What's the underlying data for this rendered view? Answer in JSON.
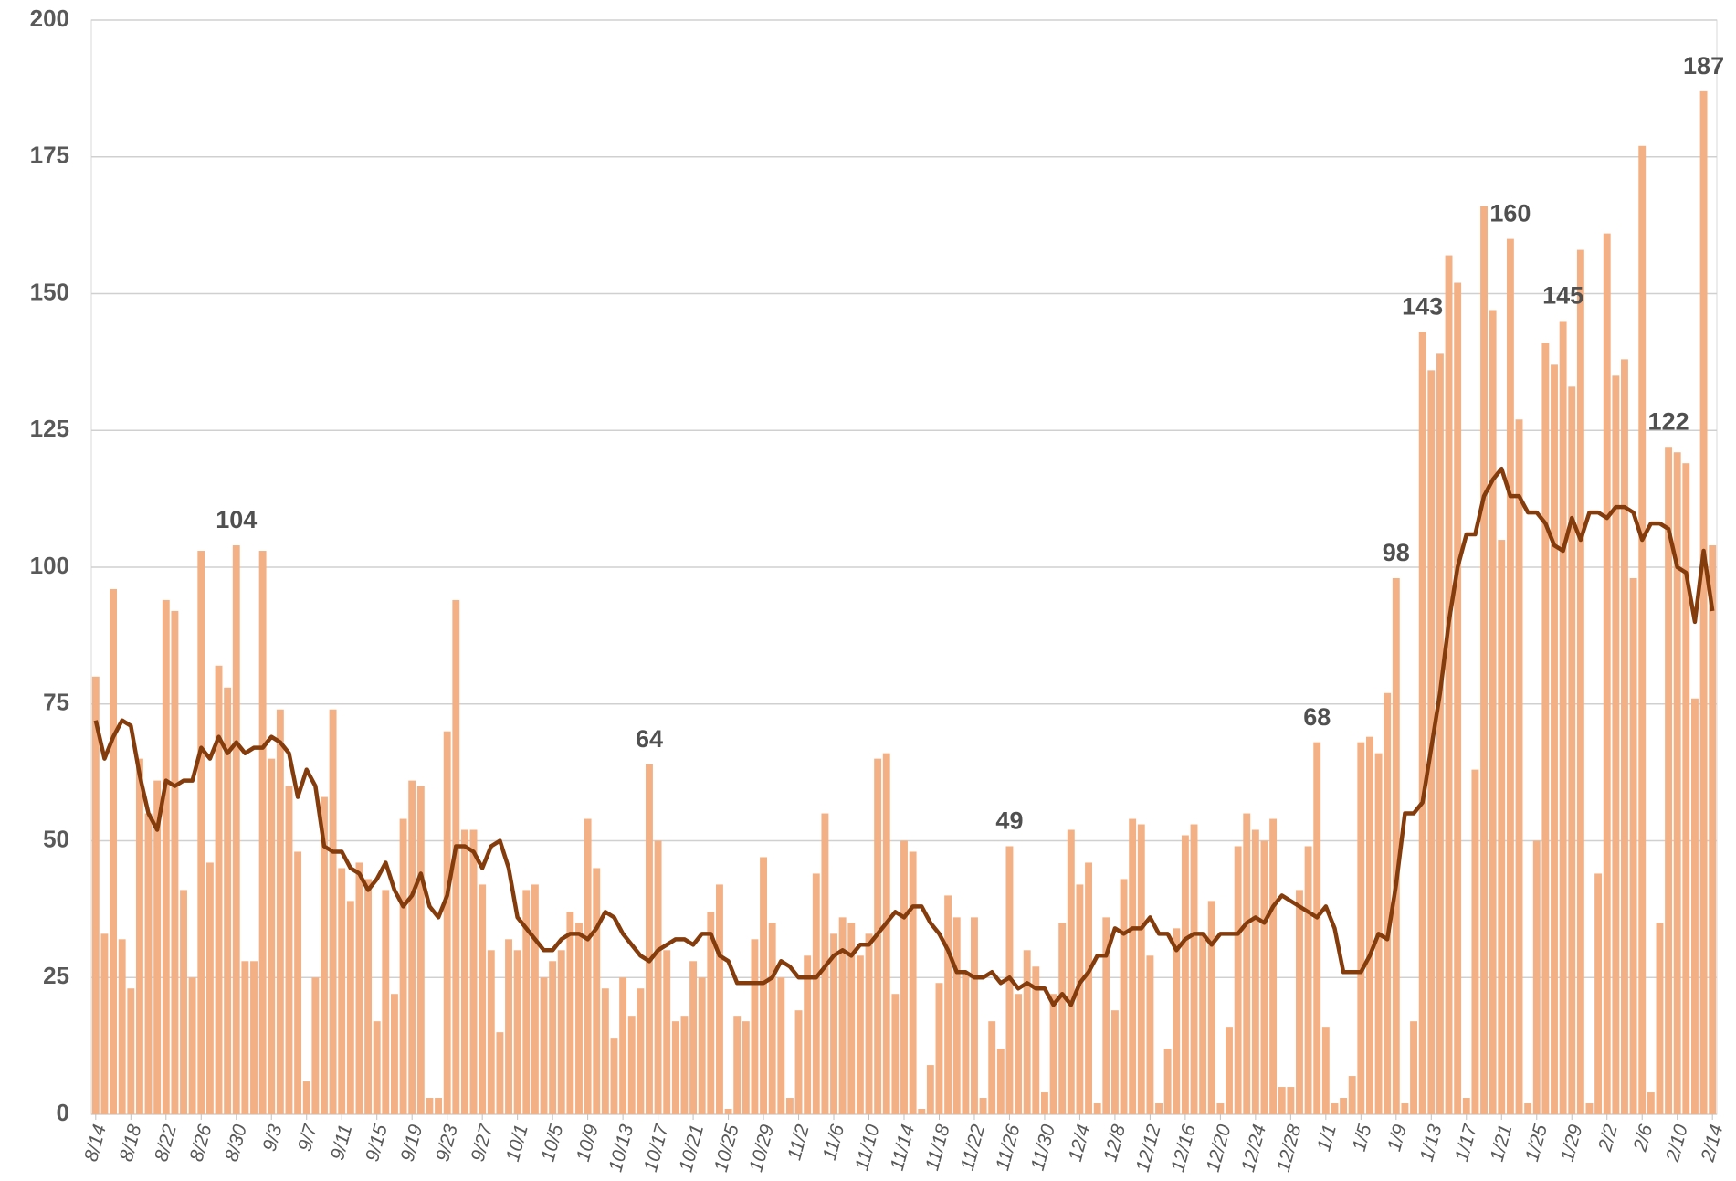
{
  "chart_data": {
    "type": "bar",
    "categories": [
      "8/14",
      null,
      null,
      null,
      "8/18",
      null,
      null,
      null,
      "8/22",
      null,
      null,
      null,
      "8/26",
      null,
      null,
      null,
      "8/30",
      null,
      null,
      null,
      "9/3",
      null,
      null,
      null,
      "9/7",
      null,
      null,
      null,
      "9/11",
      null,
      null,
      null,
      "9/15",
      null,
      null,
      null,
      "9/19",
      null,
      null,
      null,
      "9/23",
      null,
      null,
      null,
      "9/27",
      null,
      null,
      null,
      "10/1",
      null,
      null,
      null,
      "10/5",
      null,
      null,
      null,
      "10/9",
      null,
      null,
      null,
      "10/13",
      null,
      null,
      null,
      "10/17",
      null,
      null,
      null,
      "10/21",
      null,
      null,
      null,
      "10/25",
      null,
      null,
      null,
      "10/29",
      null,
      null,
      null,
      "11/2",
      null,
      null,
      null,
      "11/6",
      null,
      null,
      null,
      "11/10",
      null,
      null,
      null,
      "11/14",
      null,
      null,
      null,
      "11/18",
      null,
      null,
      null,
      "11/22",
      null,
      null,
      null,
      "11/26",
      null,
      null,
      null,
      "11/30",
      null,
      null,
      null,
      "12/4",
      null,
      null,
      null,
      "12/8",
      null,
      null,
      null,
      "12/12",
      null,
      null,
      null,
      "12/16",
      null,
      null,
      null,
      "12/20",
      null,
      null,
      null,
      "12/24",
      null,
      null,
      null,
      "12/28",
      null,
      null,
      null,
      "1/1",
      null,
      null,
      null,
      "1/5",
      null,
      null,
      null,
      "1/9",
      null,
      null,
      null,
      "1/13",
      null,
      null,
      null,
      "1/17",
      null,
      null,
      null,
      "1/21",
      null,
      null,
      null,
      "1/25",
      null,
      null,
      null,
      "1/29",
      null,
      null,
      null,
      "2/2",
      null,
      null,
      null,
      "2/6",
      null,
      null,
      null,
      "2/10",
      null,
      null,
      null,
      "2/14"
    ],
    "series": [
      {
        "type": "bar",
        "color": "#f2b084",
        "values": [
          80,
          33,
          96,
          32,
          23,
          65,
          55,
          61,
          94,
          92,
          41,
          25,
          103,
          46,
          82,
          78,
          104,
          28,
          28,
          103,
          65,
          74,
          60,
          48,
          6,
          25,
          58,
          74,
          45,
          39,
          46,
          43,
          17,
          41,
          22,
          54,
          61,
          60,
          3,
          3,
          70,
          94,
          52,
          52,
          42,
          30,
          15,
          32,
          30,
          41,
          42,
          25,
          28,
          30,
          37,
          35,
          54,
          45,
          23,
          14,
          25,
          18,
          23,
          64,
          50,
          30,
          17,
          18,
          28,
          25,
          37,
          42,
          1,
          18,
          17,
          32,
          47,
          35,
          25,
          3,
          19,
          29,
          44,
          55,
          33,
          36,
          35,
          29,
          33,
          65,
          66,
          22,
          50,
          48,
          1,
          9,
          24,
          40,
          36,
          26,
          36,
          3,
          17,
          12,
          49,
          22,
          30,
          27,
          4,
          22,
          35,
          52,
          42,
          46,
          2,
          36,
          19,
          43,
          54,
          53,
          29,
          2,
          12,
          34,
          51,
          53,
          33,
          39,
          2,
          16,
          49,
          55,
          52,
          50,
          54,
          5,
          5,
          41,
          49,
          68,
          16,
          2,
          3,
          7,
          68,
          69,
          66,
          77,
          98,
          2,
          17,
          143,
          136,
          139,
          157,
          152,
          3,
          63,
          166,
          147,
          105,
          160,
          127,
          2,
          50,
          141,
          137,
          145,
          133,
          158,
          2,
          44,
          161,
          135,
          138,
          98,
          177,
          4,
          35,
          122,
          121,
          119,
          76,
          187,
          104
        ],
        "value_labels": [
          null,
          null,
          null,
          null,
          null,
          null,
          null,
          null,
          null,
          null,
          null,
          null,
          null,
          null,
          null,
          null,
          "104",
          null,
          null,
          null,
          null,
          null,
          null,
          null,
          null,
          null,
          null,
          null,
          null,
          null,
          null,
          null,
          null,
          null,
          null,
          null,
          null,
          null,
          null,
          null,
          null,
          null,
          null,
          null,
          null,
          null,
          null,
          null,
          null,
          null,
          null,
          null,
          null,
          null,
          null,
          null,
          null,
          null,
          null,
          null,
          null,
          null,
          null,
          "64",
          null,
          null,
          null,
          null,
          null,
          null,
          null,
          null,
          null,
          null,
          null,
          null,
          null,
          null,
          null,
          null,
          null,
          null,
          null,
          null,
          null,
          null,
          null,
          null,
          null,
          null,
          null,
          null,
          null,
          null,
          null,
          null,
          null,
          null,
          null,
          null,
          null,
          null,
          null,
          null,
          "49",
          null,
          null,
          null,
          null,
          null,
          null,
          null,
          null,
          null,
          null,
          null,
          null,
          null,
          null,
          null,
          null,
          null,
          null,
          null,
          null,
          null,
          null,
          null,
          null,
          null,
          null,
          null,
          null,
          null,
          null,
          null,
          null,
          null,
          null,
          "68",
          null,
          null,
          null,
          null,
          null,
          null,
          null,
          null,
          "98",
          null,
          null,
          "143",
          null,
          null,
          null,
          null,
          null,
          null,
          null,
          null,
          null,
          "160",
          null,
          null,
          null,
          null,
          null,
          "145",
          null,
          null,
          null,
          null,
          null,
          null,
          null,
          null,
          null,
          null,
          null,
          "122",
          null,
          null,
          null,
          "187",
          null
        ]
      },
      {
        "type": "line",
        "color": "#843c0c",
        "values": [
          72,
          65,
          69,
          72,
          71,
          62,
          55,
          52,
          61,
          60,
          61,
          61,
          67,
          65,
          69,
          66,
          68,
          66,
          67,
          67,
          69,
          68,
          66,
          58,
          63,
          60,
          49,
          48,
          48,
          45,
          44,
          41,
          43,
          46,
          41,
          38,
          40,
          44,
          38,
          36,
          40,
          49,
          49,
          48,
          45,
          49,
          50,
          45,
          36,
          34,
          32,
          30,
          30,
          32,
          33,
          33,
          32,
          34,
          37,
          36,
          33,
          31,
          29,
          28,
          30,
          31,
          32,
          32,
          31,
          33,
          33,
          29,
          28,
          24,
          24,
          24,
          24,
          25,
          28,
          27,
          25,
          25,
          25,
          27,
          29,
          30,
          29,
          31,
          31,
          33,
          35,
          37,
          36,
          38,
          38,
          35,
          33,
          30,
          26,
          26,
          25,
          25,
          26,
          24,
          25,
          23,
          24,
          23,
          23,
          20,
          22,
          20,
          24,
          26,
          29,
          29,
          34,
          33,
          34,
          34,
          36,
          33,
          33,
          30,
          32,
          33,
          33,
          31,
          33,
          33,
          33,
          35,
          36,
          35,
          38,
          40,
          39,
          38,
          37,
          36,
          38,
          34,
          26,
          26,
          26,
          29,
          33,
          32,
          42,
          55,
          55,
          57,
          67,
          77,
          90,
          100,
          106,
          106,
          113,
          116,
          118,
          113,
          113,
          110,
          110,
          108,
          104,
          103,
          109,
          105,
          110,
          110,
          109,
          111,
          111,
          110,
          105,
          108,
          108,
          107,
          100,
          99,
          90,
          103,
          92
        ]
      }
    ],
    "ylim": [
      0,
      200
    ],
    "yticks": [
      0,
      25,
      50,
      75,
      100,
      125,
      150,
      175,
      200
    ],
    "grid": true
  }
}
